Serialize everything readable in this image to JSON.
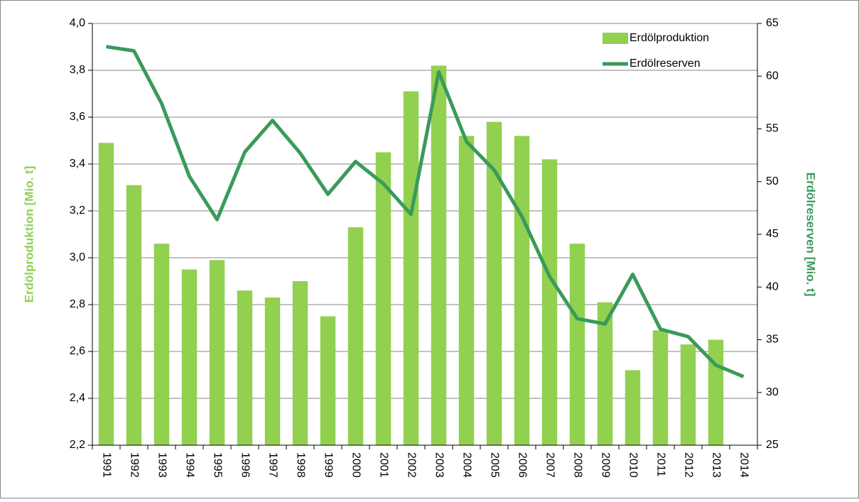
{
  "chart_data": {
    "type": "bar+line",
    "categories": [
      "1991",
      "1992",
      "1993",
      "1994",
      "1995",
      "1996",
      "1997",
      "1998",
      "1999",
      "2000",
      "2001",
      "2002",
      "2003",
      "2004",
      "2005",
      "2006",
      "2007",
      "2008",
      "2009",
      "2010",
      "2011",
      "2012",
      "2013",
      "2014"
    ],
    "series": [
      {
        "name": "Erdölproduktion",
        "type": "bar",
        "color": "#92d050",
        "axis": "y",
        "values": [
          3.49,
          3.31,
          3.06,
          2.95,
          2.99,
          2.86,
          2.83,
          2.9,
          2.75,
          3.13,
          3.45,
          3.71,
          3.82,
          3.52,
          3.58,
          3.52,
          3.42,
          3.06,
          2.81,
          2.52,
          2.69,
          2.63,
          2.65,
          null
        ]
      },
      {
        "name": "Erdölreserven",
        "type": "line",
        "color": "#3a9a5b",
        "axis": "y2",
        "values": [
          62.8,
          62.4,
          57.4,
          50.5,
          46.4,
          52.8,
          55.8,
          52.7,
          48.8,
          51.9,
          49.8,
          46.9,
          60.4,
          53.8,
          51.1,
          46.7,
          41.0,
          37.0,
          36.5,
          41.2,
          36.0,
          35.3,
          32.6,
          31.5
        ]
      }
    ],
    "ylabel": "Erdölproduktion [Mio. t]",
    "y2label": "Erdölreserven [Mio. t]",
    "ylim": [
      2.2,
      4.0
    ],
    "yticks": [
      {
        "value": 2.2,
        "label": "2,2"
      },
      {
        "value": 2.4,
        "label": "2,4"
      },
      {
        "value": 2.6,
        "label": "2,6"
      },
      {
        "value": 2.8,
        "label": "2,8"
      },
      {
        "value": 3.0,
        "label": "3,0"
      },
      {
        "value": 3.2,
        "label": "3,2"
      },
      {
        "value": 3.4,
        "label": "3,4"
      },
      {
        "value": 3.6,
        "label": "3,6"
      },
      {
        "value": 3.8,
        "label": "3,8"
      },
      {
        "value": 4.0,
        "label": "4,0"
      }
    ],
    "y2lim": [
      25,
      65
    ],
    "y2ticks": [
      25,
      30,
      35,
      40,
      45,
      50,
      55,
      60,
      65
    ],
    "grid": true,
    "legend": "upper right"
  }
}
